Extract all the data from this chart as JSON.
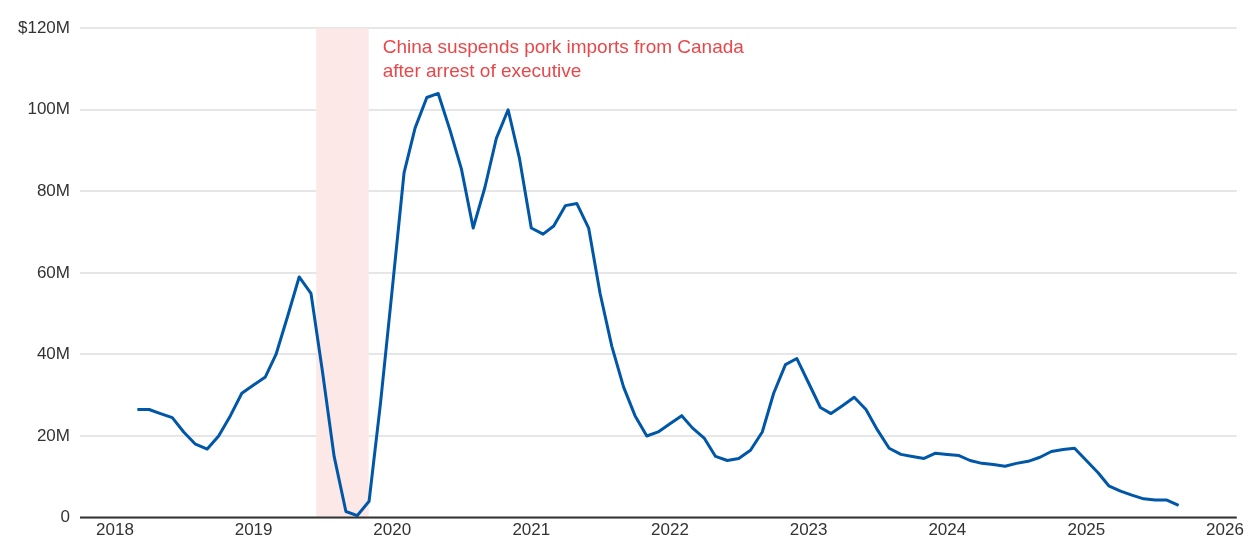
{
  "chart_data": {
    "type": "line",
    "x": [
      "2018-03",
      "2018-04",
      "2018-05",
      "2018-06",
      "2018-07",
      "2018-08",
      "2018-09",
      "2018-10",
      "2018-11",
      "2018-12",
      "2019-01",
      "2019-02",
      "2019-03",
      "2019-04",
      "2019-05",
      "2019-06",
      "2019-07",
      "2019-08",
      "2019-09",
      "2019-10",
      "2019-11",
      "2019-12",
      "2020-01",
      "2020-02",
      "2020-03",
      "2020-04",
      "2020-05",
      "2020-06",
      "2020-07",
      "2020-08",
      "2020-09",
      "2020-10",
      "2020-11",
      "2020-12",
      "2021-01",
      "2021-02",
      "2021-03",
      "2021-04",
      "2021-05",
      "2021-06",
      "2021-07",
      "2021-08",
      "2021-09",
      "2021-10",
      "2021-11",
      "2021-12",
      "2022-01",
      "2022-02",
      "2022-03",
      "2022-04",
      "2022-05",
      "2022-06",
      "2022-07",
      "2022-08",
      "2022-09",
      "2022-10",
      "2022-11",
      "2022-12",
      "2023-01",
      "2023-02",
      "2023-03",
      "2023-04",
      "2023-05",
      "2023-06",
      "2023-07",
      "2023-08",
      "2023-09",
      "2023-10",
      "2023-11",
      "2023-12",
      "2024-01",
      "2024-02",
      "2024-03",
      "2024-04",
      "2024-05",
      "2024-06",
      "2024-07",
      "2024-08",
      "2024-09",
      "2024-10",
      "2024-11",
      "2024-12",
      "2025-01",
      "2025-02",
      "2025-03",
      "2025-04",
      "2025-05",
      "2025-06",
      "2025-07",
      "2025-08",
      "2025-09"
    ],
    "series": [
      {
        "color": "#0057a8",
        "values": [
          26.5,
          26.5,
          25.5,
          24.5,
          21,
          18,
          16.8,
          20,
          25,
          30.5,
          32.5,
          34.5,
          40,
          49.5,
          59,
          55,
          36,
          15,
          1.5,
          0.5,
          4,
          28,
          56,
          84.5,
          95.5,
          103,
          104,
          95,
          85.5,
          71,
          81,
          93,
          100,
          88,
          71,
          69.5,
          71.5,
          76.5,
          77,
          71,
          55,
          42,
          32,
          25,
          20,
          21,
          23,
          25,
          22,
          19.5,
          15,
          14,
          14.5,
          16.5,
          21,
          30.5,
          37.5,
          39,
          33,
          27,
          25.5,
          27.5,
          29.5,
          26.5,
          21.5,
          17,
          15.5,
          15,
          14.5,
          15.8,
          15.5,
          15.2,
          14,
          13.3,
          13,
          12.6,
          13.3,
          13.8,
          14.8,
          16.2,
          16.7,
          17,
          14,
          11,
          7.8,
          6.5,
          5.5,
          4.6,
          4.3,
          4.3,
          3
        ]
      }
    ],
    "xlim": [
      "2017-10",
      "2026-02"
    ],
    "xticks": [
      "2018",
      "2019",
      "2020",
      "2021",
      "2022",
      "2023",
      "2024",
      "2025",
      "2026"
    ],
    "ylim": [
      0,
      120
    ],
    "yticks": [
      0,
      {
        "value": 20,
        "label": "20M"
      },
      {
        "value": 40,
        "label": "40M"
      },
      {
        "value": 60,
        "label": "60M"
      },
      {
        "value": 80,
        "label": "80M"
      },
      {
        "value": 100,
        "label": "100M"
      },
      {
        "value": 120,
        "label": "$120M"
      }
    ],
    "grid": "y",
    "line_style": "solid",
    "marker": "none",
    "legend": false,
    "bands": [
      {
        "axis": "x",
        "from": "2019-06-15",
        "to": "2019-10-31",
        "label": "China suspends pork imports from Canada after arrest of executive",
        "color": "#fde8e8"
      }
    ]
  }
}
